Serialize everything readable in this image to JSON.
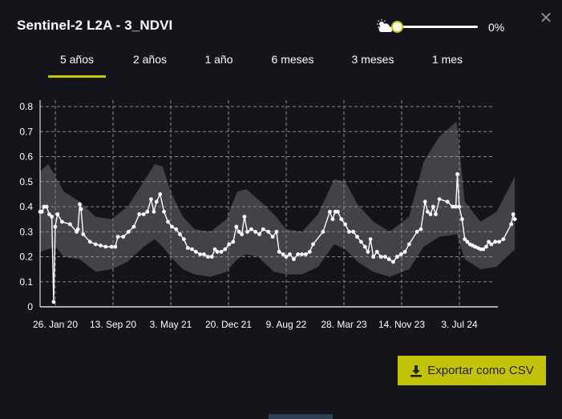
{
  "panel": {
    "title": "Sentinel-2 L2A - 3_NDVI",
    "close_icon": "close-icon"
  },
  "cloud_filter": {
    "icon": "cloud-sun-icon",
    "value": 0,
    "value_label": "0%",
    "accent": "#c8c800"
  },
  "tabs": [
    {
      "label": "5 años",
      "active": true
    },
    {
      "label": "2 años",
      "active": false
    },
    {
      "label": "1 año",
      "active": false
    },
    {
      "label": "6 meses",
      "active": false
    },
    {
      "label": "3 meses",
      "active": false
    },
    {
      "label": "1 mes",
      "active": false
    }
  ],
  "chart_data": {
    "type": "line",
    "ylim": [
      0,
      0.8
    ],
    "yticks": [
      "0",
      "0.1",
      "0.2",
      "0.3",
      "0.4",
      "0.5",
      "0.6",
      "0.7",
      "0.8"
    ],
    "xticks": [
      "26. Jan 20",
      "13. Sep 20",
      "3. May 21",
      "20. Dec 21",
      "9. Aug 22",
      "28. Mar 23",
      "14. Nov 23",
      "3. Jul 24"
    ],
    "x_range": [
      "2020-01-01",
      "2024-10-20"
    ],
    "grid": true,
    "series": [
      {
        "color": "#ffffff",
        "points": [
          [
            "2020-01-01",
            0.38
          ],
          [
            "2020-01-08",
            0.38
          ],
          [
            "2020-01-16",
            0.4
          ],
          [
            "2020-01-26",
            0.4
          ],
          [
            "2020-02-05",
            0.37
          ],
          [
            "2020-02-15",
            0.36
          ],
          [
            "2020-02-22",
            0.02
          ],
          [
            "2020-02-28",
            0.32
          ],
          [
            "2020-03-08",
            0.37
          ],
          [
            "2020-03-25",
            0.34
          ],
          [
            "2020-04-25",
            0.33
          ],
          [
            "2020-05-20",
            0.3
          ],
          [
            "2020-05-25",
            0.31
          ],
          [
            "2020-06-01",
            0.41
          ],
          [
            "2020-06-06",
            0.39
          ],
          [
            "2020-06-14",
            0.29
          ],
          [
            "2020-07-10",
            0.26
          ],
          [
            "2020-08-01",
            0.25
          ],
          [
            "2020-08-20",
            0.245
          ],
          [
            "2020-09-08",
            0.24
          ],
          [
            "2020-10-01",
            0.24
          ],
          [
            "2020-10-15",
            0.24
          ],
          [
            "2020-10-25",
            0.28
          ],
          [
            "2020-11-15",
            0.28
          ],
          [
            "2020-12-05",
            0.3
          ],
          [
            "2020-12-25",
            0.32
          ],
          [
            "2021-01-15",
            0.37
          ],
          [
            "2021-02-01",
            0.37
          ],
          [
            "2021-02-15",
            0.38
          ],
          [
            "2021-03-01",
            0.43
          ],
          [
            "2021-03-12",
            0.38
          ],
          [
            "2021-03-22",
            0.42
          ],
          [
            "2021-04-05",
            0.45
          ],
          [
            "2021-04-20",
            0.38
          ],
          [
            "2021-05-05",
            0.34
          ],
          [
            "2021-05-20",
            0.32
          ],
          [
            "2021-06-05",
            0.31
          ],
          [
            "2021-06-20",
            0.29
          ],
          [
            "2021-07-05",
            0.27
          ],
          [
            "2021-07-20",
            0.235
          ],
          [
            "2021-08-05",
            0.23
          ],
          [
            "2021-08-20",
            0.22
          ],
          [
            "2021-09-05",
            0.21
          ],
          [
            "2021-09-20",
            0.21
          ],
          [
            "2021-10-05",
            0.2
          ],
          [
            "2021-10-20",
            0.2
          ],
          [
            "2021-11-01",
            0.23
          ],
          [
            "2021-11-10",
            0.22
          ],
          [
            "2021-11-25",
            0.22
          ],
          [
            "2021-12-10",
            0.23
          ],
          [
            "2021-12-25",
            0.25
          ],
          [
            "2022-01-10",
            0.26
          ],
          [
            "2022-01-22",
            0.32
          ],
          [
            "2022-02-01",
            0.3
          ],
          [
            "2022-02-12",
            0.29
          ],
          [
            "2022-02-22",
            0.36
          ],
          [
            "2022-03-05",
            0.3
          ],
          [
            "2022-03-20",
            0.31
          ],
          [
            "2022-04-05",
            0.3
          ],
          [
            "2022-04-20",
            0.29
          ],
          [
            "2022-05-05",
            0.31
          ],
          [
            "2022-05-25",
            0.3
          ],
          [
            "2022-06-10",
            0.28
          ],
          [
            "2022-06-25",
            0.3
          ],
          [
            "2022-07-05",
            0.22
          ],
          [
            "2022-07-20",
            0.21
          ],
          [
            "2022-08-01",
            0.2
          ],
          [
            "2022-08-15",
            0.21
          ],
          [
            "2022-08-30",
            0.19
          ],
          [
            "2022-09-15",
            0.21
          ],
          [
            "2022-09-30",
            0.21
          ],
          [
            "2022-10-15",
            0.21
          ],
          [
            "2022-10-30",
            0.22
          ],
          [
            "2022-11-12",
            0.25
          ],
          [
            "2022-12-20",
            0.3
          ],
          [
            "2023-01-15",
            0.38
          ],
          [
            "2023-01-26",
            0.35
          ],
          [
            "2023-02-05",
            0.38
          ],
          [
            "2023-02-15",
            0.38
          ],
          [
            "2023-02-28",
            0.35
          ],
          [
            "2023-03-15",
            0.33
          ],
          [
            "2023-03-30",
            0.3
          ],
          [
            "2023-04-15",
            0.3
          ],
          [
            "2023-04-30",
            0.28
          ],
          [
            "2023-05-15",
            0.26
          ],
          [
            "2023-05-30",
            0.24
          ],
          [
            "2023-06-10",
            0.22
          ],
          [
            "2023-06-20",
            0.27
          ],
          [
            "2023-07-01",
            0.2
          ],
          [
            "2023-07-15",
            0.22
          ],
          [
            "2023-07-30",
            0.2
          ],
          [
            "2023-08-15",
            0.2
          ],
          [
            "2023-08-30",
            0.19
          ],
          [
            "2023-09-15",
            0.18
          ],
          [
            "2023-09-30",
            0.2
          ],
          [
            "2023-10-15",
            0.21
          ],
          [
            "2023-10-30",
            0.22
          ],
          [
            "2023-11-15",
            0.25
          ],
          [
            "2023-12-15",
            0.3
          ],
          [
            "2023-12-30",
            0.31
          ],
          [
            "2024-01-15",
            0.42
          ],
          [
            "2024-01-25",
            0.38
          ],
          [
            "2024-02-05",
            0.37
          ],
          [
            "2024-02-15",
            0.4
          ],
          [
            "2024-02-25",
            0.37
          ],
          [
            "2024-03-10",
            0.43
          ],
          [
            "2024-04-10",
            0.42
          ],
          [
            "2024-04-30",
            0.4
          ],
          [
            "2024-05-12",
            0.4
          ],
          [
            "2024-05-18",
            0.53
          ],
          [
            "2024-05-25",
            0.4
          ],
          [
            "2024-06-05",
            0.35
          ],
          [
            "2024-06-15",
            0.27
          ],
          [
            "2024-06-25",
            0.26
          ],
          [
            "2024-07-05",
            0.25
          ],
          [
            "2024-07-15",
            0.245
          ],
          [
            "2024-07-25",
            0.24
          ],
          [
            "2024-08-05",
            0.235
          ],
          [
            "2024-08-15",
            0.23
          ],
          [
            "2024-08-25",
            0.23
          ],
          [
            "2024-09-05",
            0.24
          ],
          [
            "2024-09-15",
            0.26
          ],
          [
            "2024-09-25",
            0.25
          ],
          [
            "2024-10-10",
            0.26
          ],
          [
            "2024-10-25",
            0.26
          ],
          [
            "2024-11-10",
            0.27
          ],
          [
            "2024-12-10",
            0.33
          ],
          [
            "2024-12-18",
            0.37
          ],
          [
            "2024-12-24",
            0.35
          ]
        ]
      }
    ],
    "band": {
      "color": "#4a4a52",
      "points": [
        [
          "2020-01-01",
          0.22,
          0.54
        ],
        [
          "2020-02-01",
          0.23,
          0.57
        ],
        [
          "2020-03-01",
          0.24,
          0.52
        ],
        [
          "2020-04-01",
          0.2,
          0.46
        ],
        [
          "2020-06-01",
          0.19,
          0.42
        ],
        [
          "2020-08-01",
          0.14,
          0.36
        ],
        [
          "2020-10-01",
          0.15,
          0.35
        ],
        [
          "2020-12-01",
          0.18,
          0.4
        ],
        [
          "2021-02-01",
          0.24,
          0.5
        ],
        [
          "2021-03-15",
          0.27,
          0.57
        ],
        [
          "2021-04-15",
          0.24,
          0.56
        ],
        [
          "2021-05-15",
          0.2,
          0.46
        ],
        [
          "2021-07-01",
          0.15,
          0.36
        ],
        [
          "2021-08-15",
          0.13,
          0.31
        ],
        [
          "2021-10-15",
          0.12,
          0.3
        ],
        [
          "2021-12-15",
          0.14,
          0.35
        ],
        [
          "2022-01-25",
          0.19,
          0.46
        ],
        [
          "2022-03-01",
          0.21,
          0.47
        ],
        [
          "2022-04-15",
          0.2,
          0.43
        ],
        [
          "2022-06-15",
          0.14,
          0.37
        ],
        [
          "2022-08-01",
          0.13,
          0.31
        ],
        [
          "2022-10-01",
          0.13,
          0.3
        ],
        [
          "2022-12-01",
          0.16,
          0.37
        ],
        [
          "2023-02-01",
          0.25,
          0.51
        ],
        [
          "2023-03-15",
          0.23,
          0.5
        ],
        [
          "2023-05-01",
          0.18,
          0.41
        ],
        [
          "2023-07-01",
          0.14,
          0.34
        ],
        [
          "2023-09-01",
          0.12,
          0.3
        ],
        [
          "2023-11-15",
          0.15,
          0.36
        ],
        [
          "2024-01-10",
          0.24,
          0.58
        ],
        [
          "2024-03-10",
          0.28,
          0.68
        ],
        [
          "2024-05-15",
          0.29,
          0.74
        ],
        [
          "2024-06-15",
          0.19,
          0.42
        ],
        [
          "2024-08-15",
          0.15,
          0.34
        ],
        [
          "2024-10-15",
          0.16,
          0.38
        ],
        [
          "2024-12-24",
          0.23,
          0.52
        ]
      ]
    }
  },
  "export": {
    "label": "Exportar como CSV",
    "icon": "download-icon",
    "color": "#c3c30b"
  }
}
